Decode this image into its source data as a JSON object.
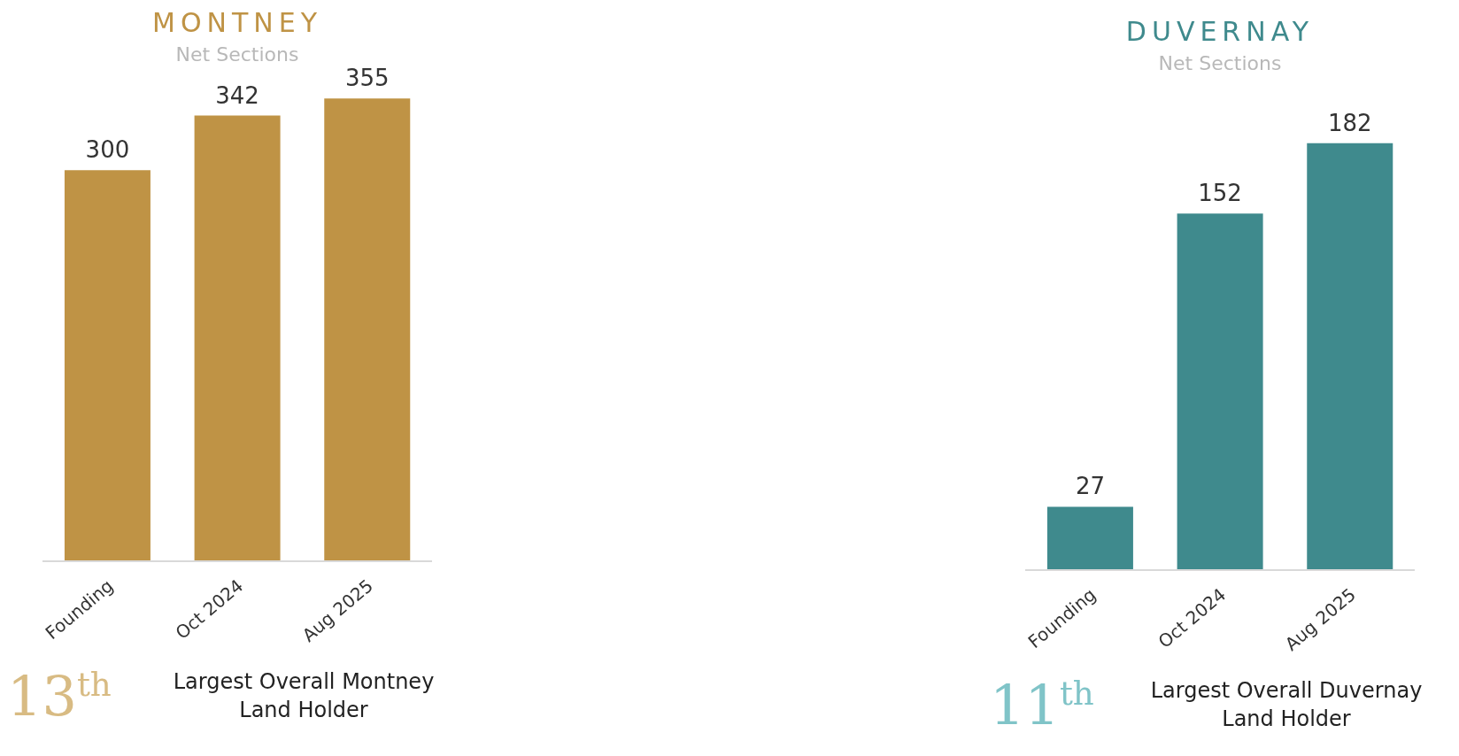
{
  "chart_data": [
    {
      "type": "bar",
      "title": "MONTNEY",
      "subtitle": "Net Sections",
      "categories": [
        "Founding",
        "Oct 2024",
        "Aug 2025"
      ],
      "values": [
        300,
        342,
        355
      ],
      "color": "#bf9345",
      "data_labels": true,
      "grid": false,
      "legend": false,
      "annotations": [
        "13$^{th}$",
        "Largest Overall Montney Land Holder"
      ]
    },
    {
      "type": "bar",
      "title": "DUVERNAY",
      "subtitle": "Net Sections",
      "categories": [
        "Founding",
        "Oct 2024",
        "Aug 2025"
      ],
      "values": [
        27,
        152,
        182
      ],
      "color": "#3f8a8d",
      "data_labels": true,
      "grid": false,
      "legend": false,
      "annotations": [
        "11$^{th}$",
        "Largest Overall Duvernay Land Holder"
      ]
    }
  ]
}
